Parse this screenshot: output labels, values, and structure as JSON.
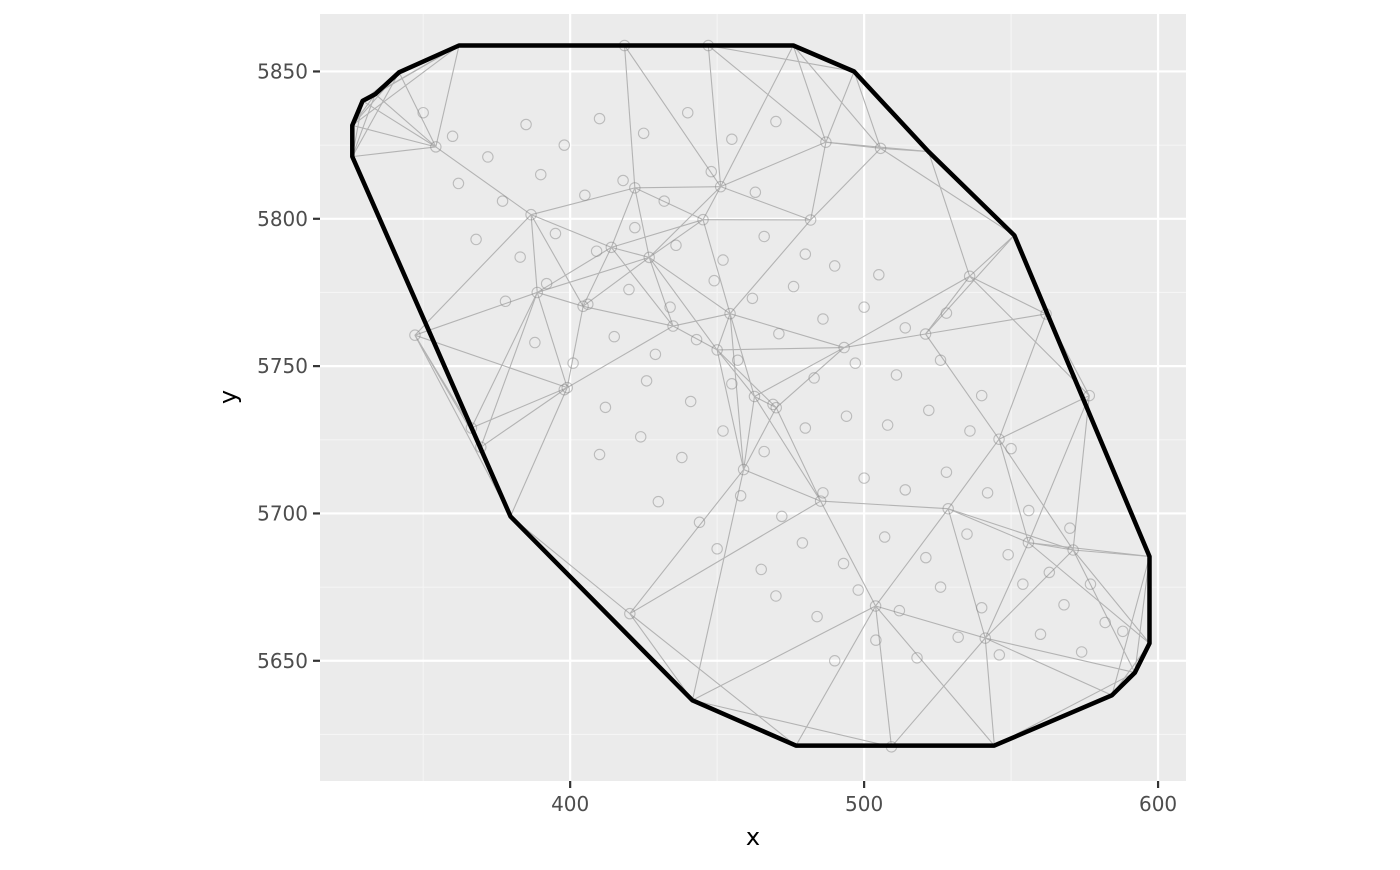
{
  "chart_data": {
    "type": "scatter",
    "title": "",
    "xlabel": "x",
    "ylabel": "y",
    "xlim": [
      314.9,
      609.5
    ],
    "ylim": [
      5609.2,
      5869.5
    ],
    "x_ticks": [
      400,
      500,
      600
    ],
    "x_tick_labels": [
      "400",
      "500",
      "600"
    ],
    "y_ticks": [
      5650,
      5700,
      5750,
      5800,
      5850
    ],
    "y_tick_labels": [
      "5650",
      "5700",
      "5750",
      "5800",
      "5850"
    ],
    "x_minor_ticks": [
      350,
      450,
      550
    ],
    "y_minor_ticks": [
      5625,
      5675,
      5725,
      5775,
      5825
    ],
    "grid": true,
    "legend": "none",
    "colors": {
      "panel_background": "#ebebeb",
      "grid_major": "#ffffff",
      "grid_minor": "#f5f5f5",
      "points": "#808080",
      "triangulation_edges": "#b3b3b3",
      "hull": "#000000"
    },
    "layers": [
      {
        "name": "convex_hull",
        "type": "path",
        "x": [
          362.2,
          475.9,
          496.6,
          521.9,
          551.1,
          597.1,
          597.1,
          592.1,
          584.3,
          544.3,
          476.8,
          441.6,
          379.7,
          325.9,
          325.9,
          329.4,
          333.7,
          341.8,
          362.2
        ],
        "y": [
          5858.8,
          5858.8,
          5850.0,
          5822.8,
          5794.4,
          5685.4,
          5655.9,
          5646.0,
          5638.3,
          5621.2,
          5621.2,
          5636.6,
          5699.0,
          5821.1,
          5831.7,
          5840.0,
          5842.3,
          5849.7,
          5858.8
        ]
      },
      {
        "name": "triangulation_vertices",
        "type": "points",
        "x": [
          418.5,
          447.0,
          505.6,
          535.9,
          561.9,
          576.6,
          555.9,
          541.2,
          509.3,
          459.0,
          420.3,
          366.4,
          347.2,
          414.0,
          451.2,
          487.0,
          445.2,
          422.0,
          481.8,
          388.8,
          399.0,
          369.6,
          435.0,
          450.0,
          462.7,
          493.2,
          520.9,
          545.9,
          571.1,
          528.6,
          503.9,
          485.2,
          470.1,
          454.4,
          426.9,
          404.4,
          386.7,
          354.3
        ],
        "y": [
          5858.8,
          5858.8,
          5823.9,
          5780.5,
          5767.7,
          5740.0,
          5690.1,
          5657.7,
          5620.8,
          5714.9,
          5666.0,
          5729.0,
          5760.5,
          5790.3,
          5810.9,
          5826.0,
          5799.7,
          5810.5,
          5799.6,
          5775.0,
          5742.7,
          5722.5,
          5763.6,
          5755.5,
          5739.7,
          5756.3,
          5760.9,
          5725.2,
          5687.6,
          5701.6,
          5668.6,
          5704.2,
          5735.9,
          5767.8,
          5786.9,
          5770.3,
          5801.4,
          5824.4
        ]
      },
      {
        "name": "sample_points",
        "type": "points",
        "x": [
          350,
          360,
          372,
          385,
          398,
          410,
          425,
          440,
          455,
          470,
          362,
          377,
          390,
          405,
          418,
          432,
          448,
          463,
          368,
          383,
          395,
          409,
          422,
          436,
          452,
          466,
          480,
          378,
          392,
          406,
          420,
          434,
          449,
          462,
          476,
          490,
          505,
          388,
          401,
          415,
          429,
          443,
          457,
          471,
          486,
          500,
          514,
          528,
          398,
          412,
          426,
          441,
          455,
          469,
          483,
          497,
          511,
          526,
          540,
          410,
          424,
          438,
          452,
          466,
          480,
          494,
          508,
          522,
          536,
          550,
          430,
          444,
          458,
          472,
          486,
          500,
          514,
          528,
          542,
          556,
          570,
          450,
          465,
          479,
          493,
          507,
          521,
          535,
          549,
          563,
          577,
          470,
          484,
          498,
          512,
          526,
          540,
          554,
          568,
          582,
          490,
          504,
          518,
          532,
          546,
          560,
          574,
          588
        ],
        "y": [
          5836,
          5828,
          5821,
          5832,
          5825,
          5834,
          5829,
          5836,
          5827,
          5833,
          5812,
          5806,
          5815,
          5808,
          5813,
          5806,
          5816,
          5809,
          5793,
          5787,
          5795,
          5789,
          5797,
          5791,
          5786,
          5794,
          5788,
          5772,
          5778,
          5771,
          5776,
          5770,
          5779,
          5773,
          5777,
          5784,
          5781,
          5758,
          5751,
          5760,
          5754,
          5759,
          5752,
          5761,
          5766,
          5770,
          5763,
          5768,
          5742,
          5736,
          5745,
          5738,
          5744,
          5737,
          5746,
          5751,
          5747,
          5752,
          5740,
          5720,
          5726,
          5719,
          5728,
          5721,
          5729,
          5733,
          5730,
          5735,
          5728,
          5722,
          5704,
          5697,
          5706,
          5699,
          5707,
          5712,
          5708,
          5714,
          5707,
          5701,
          5695,
          5688,
          5681,
          5690,
          5683,
          5692,
          5685,
          5693,
          5686,
          5680,
          5676,
          5672,
          5665,
          5674,
          5667,
          5675,
          5668,
          5676,
          5669,
          5663,
          5650,
          5657,
          5651,
          5658,
          5652,
          5659,
          5653,
          5660
        ]
      }
    ]
  }
}
